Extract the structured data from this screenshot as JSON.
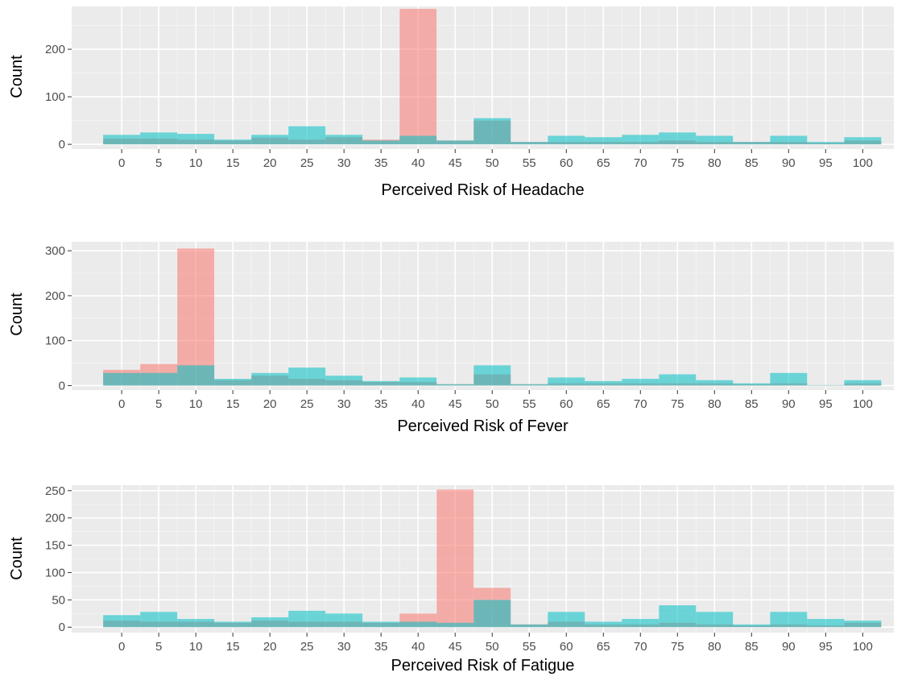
{
  "chart_data": [
    {
      "type": "bar",
      "title": "",
      "xlabel": "Perceived Risk of Headache",
      "ylabel": "Count",
      "ylim": [
        -10,
        290
      ],
      "yticks": [
        0,
        100,
        200
      ],
      "xticks": [
        0,
        5,
        10,
        15,
        20,
        25,
        30,
        35,
        40,
        45,
        50,
        55,
        60,
        65,
        70,
        75,
        80,
        85,
        90,
        95,
        100
      ],
      "binwidth": 5,
      "grid": true,
      "legend": "none",
      "series": [
        {
          "color": "#f8766d",
          "bins": [
            0,
            5,
            10,
            15,
            20,
            25,
            30,
            35,
            40,
            45,
            50,
            55,
            60,
            65,
            70,
            75,
            80,
            85,
            90,
            95,
            100
          ],
          "values": [
            12,
            12,
            10,
            8,
            14,
            10,
            15,
            10,
            285,
            8,
            50,
            5,
            5,
            5,
            5,
            8,
            5,
            5,
            5,
            3,
            8
          ]
        },
        {
          "color": "#00bfc4",
          "bins": [
            0,
            5,
            10,
            15,
            20,
            25,
            30,
            35,
            40,
            45,
            50,
            55,
            60,
            65,
            70,
            75,
            80,
            85,
            90,
            95,
            100
          ],
          "values": [
            20,
            25,
            22,
            10,
            20,
            38,
            20,
            8,
            18,
            8,
            55,
            5,
            18,
            15,
            20,
            25,
            18,
            5,
            18,
            5,
            15
          ]
        }
      ]
    },
    {
      "type": "bar",
      "title": "",
      "xlabel": "Perceived Risk of Fever",
      "ylabel": "Count",
      "ylim": [
        -10,
        320
      ],
      "yticks": [
        0,
        100,
        200,
        300
      ],
      "xticks": [
        0,
        5,
        10,
        15,
        20,
        25,
        30,
        35,
        40,
        45,
        50,
        55,
        60,
        65,
        70,
        75,
        80,
        85,
        90,
        95,
        100
      ],
      "binwidth": 5,
      "grid": true,
      "legend": "none",
      "series": [
        {
          "color": "#f8766d",
          "bins": [
            0,
            5,
            10,
            15,
            20,
            25,
            30,
            35,
            40,
            45,
            50,
            55,
            60,
            65,
            70,
            75,
            80,
            85,
            90,
            95,
            100
          ],
          "values": [
            35,
            48,
            305,
            12,
            22,
            15,
            12,
            8,
            8,
            3,
            25,
            3,
            5,
            5,
            5,
            5,
            5,
            3,
            5,
            1,
            5
          ]
        },
        {
          "color": "#00bfc4",
          "bins": [
            0,
            5,
            10,
            15,
            20,
            25,
            30,
            35,
            40,
            45,
            50,
            55,
            60,
            65,
            70,
            75,
            80,
            85,
            90,
            95,
            100
          ],
          "values": [
            28,
            28,
            45,
            15,
            28,
            40,
            22,
            10,
            18,
            3,
            45,
            3,
            18,
            10,
            15,
            25,
            12,
            5,
            28,
            1,
            12
          ]
        }
      ]
    },
    {
      "type": "bar",
      "title": "",
      "xlabel": "Perceived Risk of Fatigue",
      "ylabel": "Count",
      "ylim": [
        -10,
        260
      ],
      "yticks": [
        0,
        50,
        100,
        150,
        200,
        250
      ],
      "xticks": [
        0,
        5,
        10,
        15,
        20,
        25,
        30,
        35,
        40,
        45,
        50,
        55,
        60,
        65,
        70,
        75,
        80,
        85,
        90,
        95,
        100
      ],
      "binwidth": 5,
      "grid": true,
      "legend": "none",
      "series": [
        {
          "color": "#f8766d",
          "bins": [
            0,
            5,
            10,
            15,
            20,
            25,
            30,
            35,
            40,
            45,
            50,
            55,
            60,
            65,
            70,
            75,
            80,
            85,
            90,
            95,
            100
          ],
          "values": [
            12,
            10,
            10,
            8,
            12,
            10,
            10,
            8,
            25,
            252,
            72,
            5,
            10,
            5,
            5,
            8,
            5,
            3,
            5,
            3,
            8
          ]
        },
        {
          "color": "#00bfc4",
          "bins": [
            0,
            5,
            10,
            15,
            20,
            25,
            30,
            35,
            40,
            45,
            50,
            55,
            60,
            65,
            70,
            75,
            80,
            85,
            90,
            95,
            100
          ],
          "values": [
            22,
            28,
            15,
            10,
            18,
            30,
            25,
            10,
            10,
            8,
            50,
            5,
            28,
            10,
            15,
            40,
            28,
            5,
            28,
            15,
            12
          ]
        }
      ]
    }
  ]
}
